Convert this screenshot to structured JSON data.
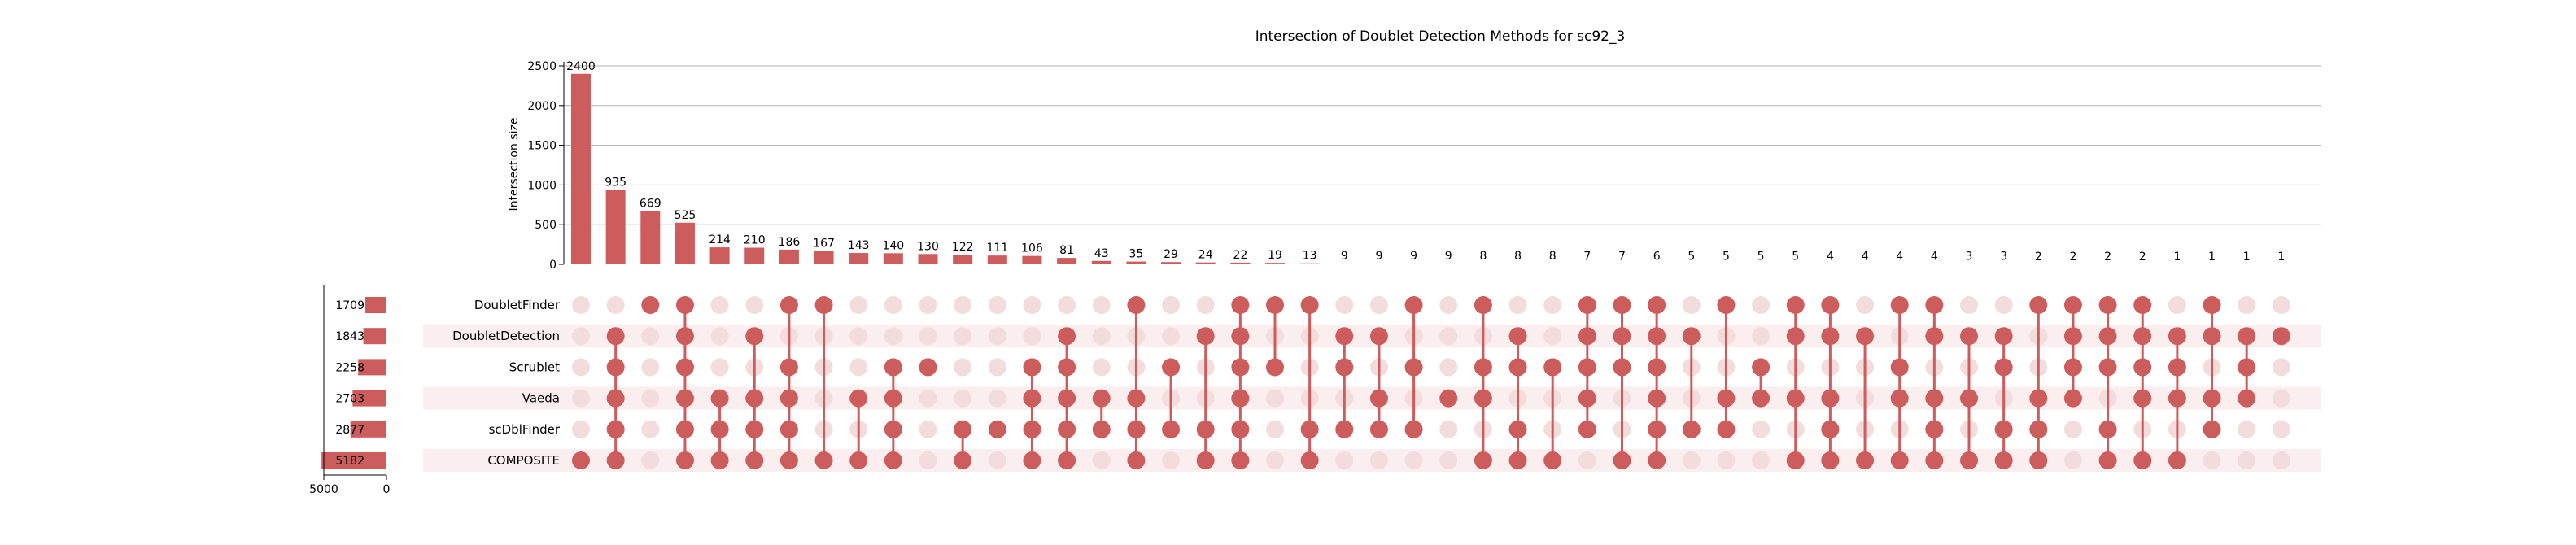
{
  "chart_data": {
    "type": "upset",
    "title": "Intersection of Doublet Detection Methods for sc92_3",
    "ylabel": "Intersection size",
    "ylim": [
      0,
      2500
    ],
    "yticks": [
      0,
      500,
      1000,
      1500,
      2000,
      2500
    ],
    "set_size_ticks": [
      5000,
      0
    ],
    "bar_color": "#cd5c5c",
    "sets": [
      {
        "name": "DoubletFinder",
        "size": 1709
      },
      {
        "name": "DoubletDetection",
        "size": 1843
      },
      {
        "name": "Scrublet",
        "size": 2258
      },
      {
        "name": "Vaeda",
        "size": 2703
      },
      {
        "name": "scDblFinder",
        "size": 2877
      },
      {
        "name": "COMPOSITE",
        "size": 5182
      }
    ],
    "intersections": [
      {
        "value": 2400,
        "members": [
          5
        ]
      },
      {
        "value": 935,
        "members": [
          1,
          2,
          3,
          4,
          5
        ]
      },
      {
        "value": 669,
        "members": [
          0
        ]
      },
      {
        "value": 525,
        "members": [
          0,
          1,
          2,
          3,
          4,
          5
        ]
      },
      {
        "value": 214,
        "members": [
          3,
          4,
          5
        ]
      },
      {
        "value": 210,
        "members": [
          1,
          3,
          4,
          5
        ]
      },
      {
        "value": 186,
        "members": [
          0,
          2,
          3,
          4,
          5
        ]
      },
      {
        "value": 167,
        "members": [
          0,
          5
        ]
      },
      {
        "value": 143,
        "members": [
          3,
          5
        ]
      },
      {
        "value": 140,
        "members": [
          2,
          3,
          4,
          5
        ]
      },
      {
        "value": 130,
        "members": [
          2
        ]
      },
      {
        "value": 122,
        "members": [
          4,
          5
        ]
      },
      {
        "value": 111,
        "members": [
          4
        ]
      },
      {
        "value": 106,
        "members": [
          2,
          3,
          4,
          5
        ]
      },
      {
        "value": 81,
        "members": [
          1,
          2,
          3,
          4,
          5
        ]
      },
      {
        "value": 43,
        "members": [
          3,
          4
        ]
      },
      {
        "value": 35,
        "members": [
          0,
          3,
          4,
          5
        ]
      },
      {
        "value": 29,
        "members": [
          2,
          4
        ]
      },
      {
        "value": 24,
        "members": [
          1,
          4,
          5
        ]
      },
      {
        "value": 22,
        "members": [
          0,
          1,
          2,
          3,
          4,
          5
        ]
      },
      {
        "value": 19,
        "members": [
          0,
          2
        ]
      },
      {
        "value": 13,
        "members": [
          0,
          4,
          5
        ]
      },
      {
        "value": 9,
        "members": [
          1,
          2,
          4
        ]
      },
      {
        "value": 9,
        "members": [
          1,
          3,
          4
        ]
      },
      {
        "value": 9,
        "members": [
          0,
          2,
          4
        ]
      },
      {
        "value": 9,
        "members": [
          3
        ]
      },
      {
        "value": 8,
        "members": [
          0,
          2,
          3,
          5
        ]
      },
      {
        "value": 8,
        "members": [
          1,
          2,
          4,
          5
        ]
      },
      {
        "value": 8,
        "members": [
          2,
          5
        ]
      },
      {
        "value": 7,
        "members": [
          0,
          1,
          2,
          3,
          4
        ]
      },
      {
        "value": 7,
        "members": [
          0,
          1,
          2,
          5
        ]
      },
      {
        "value": 6,
        "members": [
          0,
          1,
          2,
          3,
          4,
          5
        ]
      },
      {
        "value": 5,
        "members": [
          1,
          4
        ]
      },
      {
        "value": 5,
        "members": [
          0,
          3,
          4
        ]
      },
      {
        "value": 5,
        "members": [
          2,
          3
        ]
      },
      {
        "value": 5,
        "members": [
          0,
          1,
          3,
          5
        ]
      },
      {
        "value": 4,
        "members": [
          0,
          1,
          3,
          4,
          5
        ]
      },
      {
        "value": 4,
        "members": [
          1,
          5
        ]
      },
      {
        "value": 4,
        "members": [
          0,
          2,
          3,
          5
        ]
      },
      {
        "value": 4,
        "members": [
          0,
          1,
          3,
          4,
          5
        ]
      },
      {
        "value": 3,
        "members": [
          1,
          3,
          5
        ]
      },
      {
        "value": 3,
        "members": [
          1,
          2,
          4,
          5
        ]
      },
      {
        "value": 2,
        "members": [
          0,
          3,
          4,
          5
        ]
      },
      {
        "value": 2,
        "members": [
          0,
          1,
          2,
          3
        ]
      },
      {
        "value": 2,
        "members": [
          0,
          1,
          2,
          4,
          5
        ]
      },
      {
        "value": 2,
        "members": [
          0,
          1,
          2,
          3,
          5
        ]
      },
      {
        "value": 1,
        "members": [
          1,
          2,
          3,
          5
        ]
      },
      {
        "value": 1,
        "members": [
          0,
          1,
          3,
          4
        ]
      },
      {
        "value": 1,
        "members": [
          1,
          2,
          3
        ]
      },
      {
        "value": 1,
        "members": [
          1
        ]
      }
    ]
  }
}
